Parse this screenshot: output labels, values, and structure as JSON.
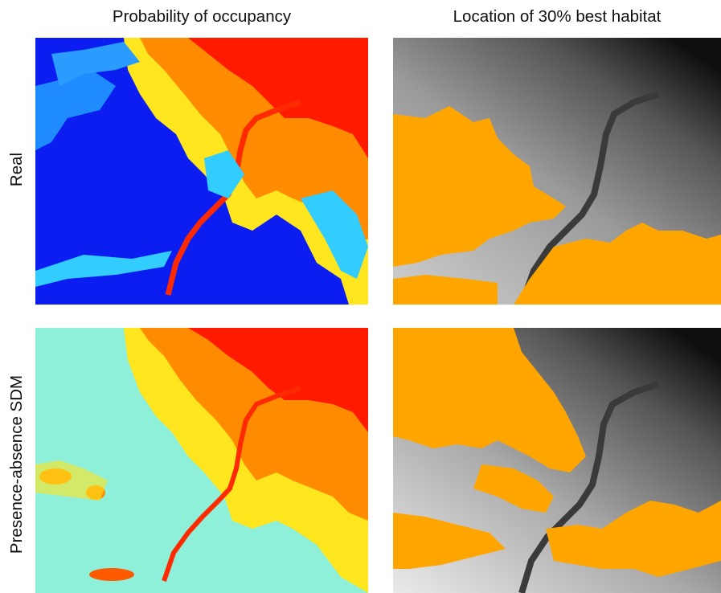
{
  "columns": [
    {
      "title": "Probability of occupancy"
    },
    {
      "title": "Location of 30% best habitat"
    }
  ],
  "rows": [
    {
      "label": "Real"
    },
    {
      "label": "Presence-absence SDM"
    }
  ],
  "maps": {
    "probability_colormap": [
      "#0a1ef0",
      "#1e6cff",
      "#33ccff",
      "#8ef0d8",
      "#ffee22",
      "#ff8c00",
      "#ff1a00"
    ],
    "habitat_color": "#ffa500",
    "terrain_colormap": [
      "#e8e8e8",
      "#b4b4b4",
      "#7a7a7a",
      "#3a3a3a",
      "#0a0a0a"
    ]
  }
}
